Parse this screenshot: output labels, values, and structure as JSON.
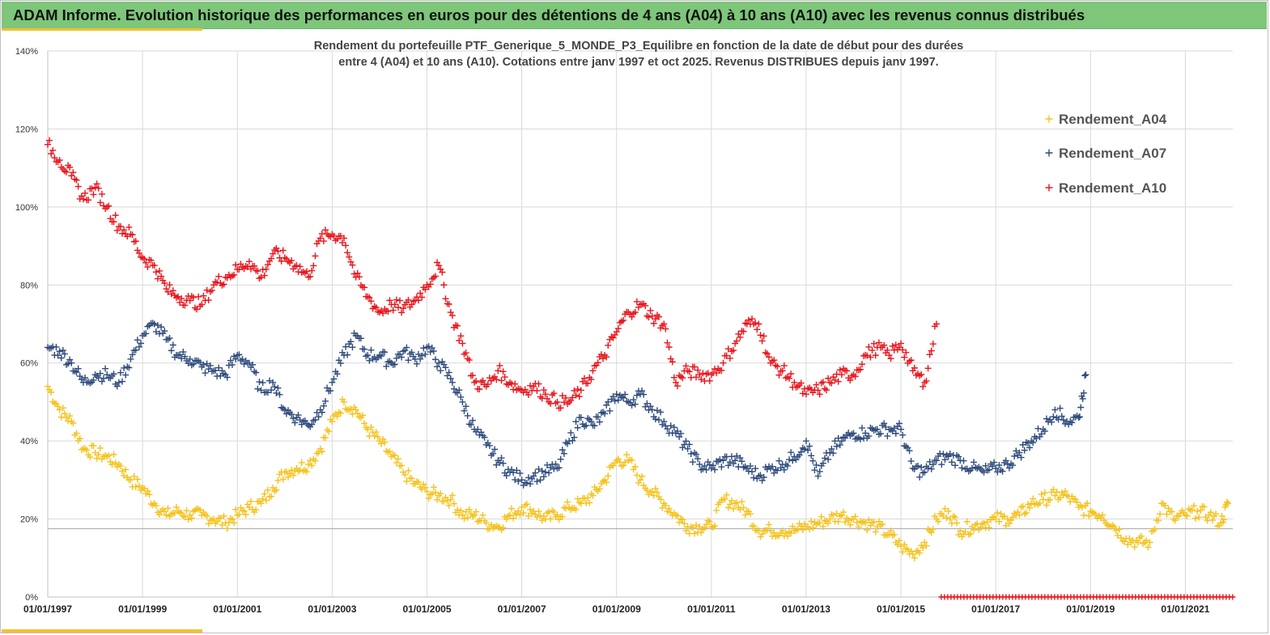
{
  "header": {
    "title": "ADAM Informe. Evolution historique des performances en euros pour des détentions de 4 ans (A04) à 10 ans (A10) avec les revenus connus distribués"
  },
  "colors": {
    "title_bg": "#7dc67a",
    "accent": "#f2c12e",
    "a04": "#f5c21b",
    "a07": "#2f4b7c",
    "a10": "#e8141b"
  },
  "chart_data": {
    "type": "scatter",
    "title_lines": [
      "Rendement du portefeuille PTF_Generique_5_MONDE_P3_Equilibre  en fonction de la date de début pour des durées",
      "entre 4 (A04) et 10 ans (A10). Cotations  entre janv 1997 et oct 2025. Revenus DISTRIBUES depuis janv 1997."
    ],
    "xlabel": "",
    "ylabel": "",
    "x_range": [
      1997.0,
      2022.0
    ],
    "ylim": [
      0,
      140
    ],
    "y_ticks": [
      "0%",
      "20%",
      "40%",
      "60%",
      "80%",
      "100%",
      "120%",
      "140%"
    ],
    "y_tick_values": [
      0,
      20,
      40,
      60,
      80,
      100,
      120,
      140
    ],
    "x_ticks": [
      "01/01/1997",
      "01/01/1999",
      "01/01/2001",
      "01/01/2003",
      "01/01/2005",
      "01/01/2007",
      "01/01/2009",
      "01/01/2011",
      "01/01/2013",
      "01/01/2015",
      "01/01/2017",
      "01/01/2019",
      "01/01/2021"
    ],
    "x_tick_values": [
      1997,
      1999,
      2001,
      2003,
      2005,
      2007,
      2009,
      2011,
      2013,
      2015,
      2017,
      2019,
      2021
    ],
    "reference_line_y": 17.5,
    "legend": [
      "Rendement_A04",
      "Rendement_A07",
      "Rendement_A10"
    ],
    "marker": "+",
    "series": [
      {
        "name": "Rendement_A04",
        "x": [
          1997.0,
          1997.25,
          1997.5,
          1997.75,
          1998.0,
          1998.25,
          1998.5,
          1998.75,
          1999.0,
          1999.25,
          1999.5,
          1999.75,
          2000.0,
          2000.25,
          2000.5,
          2000.75,
          2001.0,
          2001.25,
          2001.5,
          2001.75,
          2002.0,
          2002.25,
          2002.5,
          2002.75,
          2003.0,
          2003.25,
          2003.5,
          2003.75,
          2004.0,
          2004.25,
          2004.5,
          2004.75,
          2005.0,
          2005.25,
          2005.5,
          2005.75,
          2006.0,
          2006.25,
          2006.5,
          2006.75,
          2007.0,
          2007.25,
          2007.5,
          2007.75,
          2008.0,
          2008.25,
          2008.5,
          2008.75,
          2009.0,
          2009.25,
          2009.5,
          2009.75,
          2010.0,
          2010.25,
          2010.5,
          2010.75,
          2011.0,
          2011.25,
          2011.5,
          2011.75,
          2012.0,
          2012.25,
          2012.5,
          2012.75,
          2013.0,
          2013.25,
          2013.5,
          2013.75,
          2014.0,
          2014.25,
          2014.5,
          2014.75,
          2015.0,
          2015.25,
          2015.5,
          2015.75,
          2016.0,
          2016.25,
          2016.5,
          2016.75,
          2017.0,
          2017.25,
          2017.5,
          2017.75,
          2018.0,
          2018.25,
          2018.5,
          2018.75,
          2019.0,
          2019.25,
          2019.5,
          2019.75,
          2020.0,
          2020.25,
          2020.5,
          2020.75,
          2021.0,
          2021.25,
          2021.5,
          2021.75,
          2021.9
        ],
        "values": [
          54,
          48,
          45,
          38,
          37,
          36,
          34,
          30,
          28,
          24,
          21,
          22,
          21,
          21,
          20,
          19,
          21,
          23,
          24,
          28,
          32,
          33,
          34,
          38,
          45,
          50,
          48,
          43,
          40,
          36,
          32,
          29,
          27,
          26,
          25,
          21,
          21,
          19,
          18,
          21,
          23,
          22,
          20,
          21,
          23,
          24,
          26,
          30,
          35,
          35,
          30,
          27,
          24,
          21,
          18,
          18,
          18,
          25,
          24,
          22,
          17,
          17,
          17,
          17,
          18,
          19,
          20,
          21,
          20,
          19,
          18,
          16,
          13,
          11,
          14,
          20,
          22,
          17,
          18,
          19,
          20,
          20,
          21,
          24,
          25,
          26,
          26,
          23,
          22,
          21,
          18,
          15,
          14,
          14,
          24,
          20,
          21,
          22,
          21,
          19,
          24
        ]
      },
      {
        "name": "Rendement_A07",
        "x": [
          1997.0,
          1997.25,
          1997.5,
          1997.75,
          1998.0,
          1998.25,
          1998.5,
          1998.75,
          1999.0,
          1999.25,
          1999.5,
          1999.75,
          2000.0,
          2000.25,
          2000.5,
          2000.75,
          2001.0,
          2001.25,
          2001.5,
          2001.75,
          2002.0,
          2002.25,
          2002.5,
          2002.75,
          2003.0,
          2003.25,
          2003.5,
          2003.75,
          2004.0,
          2004.25,
          2004.5,
          2004.75,
          2005.0,
          2005.25,
          2005.5,
          2005.75,
          2006.0,
          2006.25,
          2006.5,
          2006.75,
          2007.0,
          2007.25,
          2007.5,
          2007.75,
          2008.0,
          2008.25,
          2008.5,
          2008.75,
          2009.0,
          2009.25,
          2009.5,
          2009.75,
          2010.0,
          2010.25,
          2010.5,
          2010.75,
          2011.0,
          2011.25,
          2011.5,
          2011.75,
          2012.0,
          2012.25,
          2012.5,
          2012.75,
          2013.0,
          2013.25,
          2013.5,
          2013.75,
          2014.0,
          2014.25,
          2014.5,
          2014.75,
          2015.0,
          2015.25,
          2015.5,
          2015.75,
          2016.0,
          2016.25,
          2016.5,
          2016.75,
          2017.0,
          2017.25,
          2017.5,
          2017.75,
          2018.0,
          2018.25,
          2018.5,
          2018.75,
          2018.9
        ],
        "values": [
          64,
          63,
          60,
          55,
          57,
          57,
          55,
          61,
          67,
          70,
          66,
          62,
          61,
          59,
          58,
          57,
          62,
          60,
          53,
          55,
          48,
          46,
          44,
          48,
          55,
          62,
          67,
          62,
          62,
          60,
          63,
          61,
          64,
          60,
          56,
          50,
          43,
          39,
          35,
          32,
          30,
          31,
          32,
          33,
          40,
          46,
          44,
          47,
          52,
          50,
          52,
          48,
          45,
          42,
          38,
          34,
          33,
          35,
          35,
          33,
          31,
          33,
          34,
          36,
          40,
          31,
          37,
          40,
          42,
          42,
          43,
          43,
          43,
          33,
          32,
          35,
          36,
          35,
          33,
          32,
          33,
          34,
          37,
          40,
          43,
          48,
          45,
          46,
          57
        ]
      },
      {
        "name": "Rendement_A10",
        "x": [
          1997.0,
          1997.25,
          1997.5,
          1997.75,
          1998.0,
          1998.25,
          1998.5,
          1998.75,
          1999.0,
          1999.25,
          1999.5,
          1999.75,
          2000.0,
          2000.25,
          2000.5,
          2000.75,
          2001.0,
          2001.25,
          2001.5,
          2001.75,
          2002.0,
          2002.25,
          2002.5,
          2002.75,
          2003.0,
          2003.25,
          2003.5,
          2003.75,
          2004.0,
          2004.25,
          2004.5,
          2004.75,
          2005.0,
          2005.25,
          2005.5,
          2005.75,
          2006.0,
          2006.25,
          2006.5,
          2006.75,
          2007.0,
          2007.25,
          2007.5,
          2007.75,
          2008.0,
          2008.25,
          2008.5,
          2008.75,
          2009.0,
          2009.25,
          2009.5,
          2009.75,
          2010.0,
          2010.25,
          2010.5,
          2010.75,
          2011.0,
          2011.25,
          2011.5,
          2011.75,
          2012.0,
          2012.25,
          2012.5,
          2012.75,
          2013.0,
          2013.25,
          2013.5,
          2013.75,
          2014.0,
          2014.25,
          2014.5,
          2014.75,
          2015.0,
          2015.25,
          2015.5,
          2015.75
        ],
        "values": [
          116,
          112,
          108,
          102,
          105,
          100,
          95,
          93,
          87,
          85,
          79,
          77,
          76,
          75,
          80,
          82,
          84,
          86,
          82,
          88,
          87,
          85,
          82,
          92,
          93,
          92,
          82,
          77,
          73,
          75,
          74,
          76,
          80,
          85,
          73,
          65,
          55,
          54,
          58,
          55,
          53,
          54,
          52,
          50,
          50,
          53,
          58,
          62,
          68,
          73,
          75,
          72,
          70,
          55,
          58,
          57,
          57,
          60,
          65,
          70,
          70,
          60,
          58,
          55,
          52,
          53,
          55,
          57,
          57,
          62,
          64,
          62,
          65,
          58,
          55,
          70
        ],
        "zero_segment": [
          2015.85,
          2022.1
        ]
      }
    ]
  }
}
